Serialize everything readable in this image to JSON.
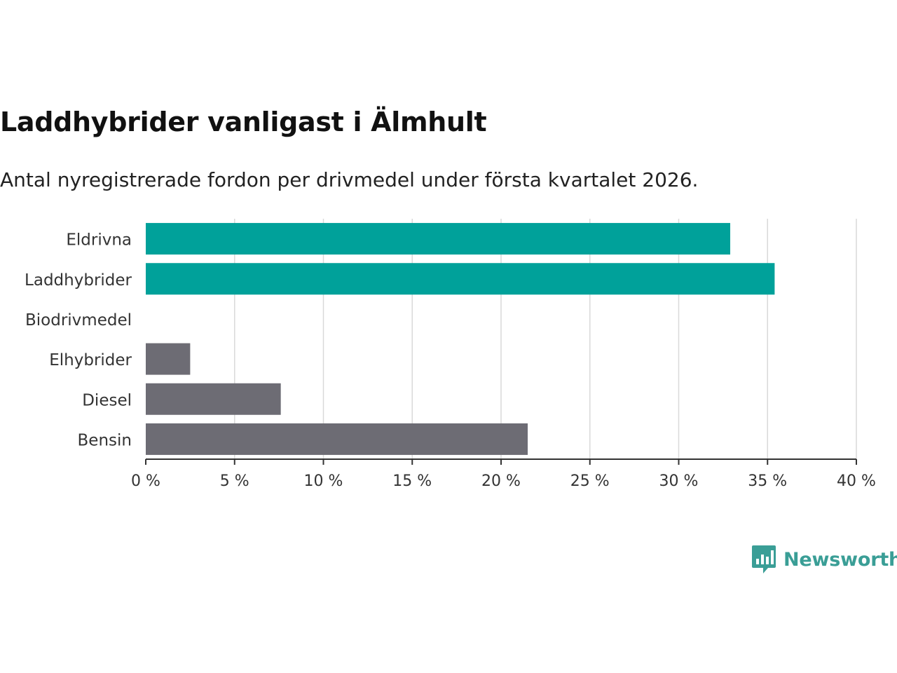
{
  "chart_data": {
    "type": "bar",
    "orientation": "horizontal",
    "title": "Laddhybrider vanligast i Älmhult",
    "subtitle": "Antal nyregistrerade fordon per drivmedel under första kvartalet 2026.",
    "categories": [
      "Eldrivna",
      "Laddhybrider",
      "Biodrivmedel",
      "Elhybrider",
      "Diesel",
      "Bensin"
    ],
    "values": [
      32.9,
      35.4,
      0,
      2.5,
      7.6,
      21.5
    ],
    "bar_colors": [
      "#00a19a",
      "#00a19a",
      "#00a19a",
      "#6d6c74",
      "#6d6c74",
      "#6d6c74"
    ],
    "xlim": [
      0,
      40
    ],
    "xticks": [
      0,
      5,
      10,
      15,
      20,
      25,
      30,
      35,
      40
    ],
    "xtick_labels": [
      "0 %",
      "5 %",
      "10 %",
      "15 %",
      "20 %",
      "25 %",
      "30 %",
      "35 %",
      "40 %"
    ],
    "xlabel": "",
    "ylabel": "",
    "grid": "vertical",
    "legend": "none"
  },
  "brand": {
    "name": "Newsworthy",
    "color": "#3a9e96"
  },
  "colors": {
    "grid": "#d9d9d9",
    "axis": "#333333",
    "label": "#333333"
  }
}
